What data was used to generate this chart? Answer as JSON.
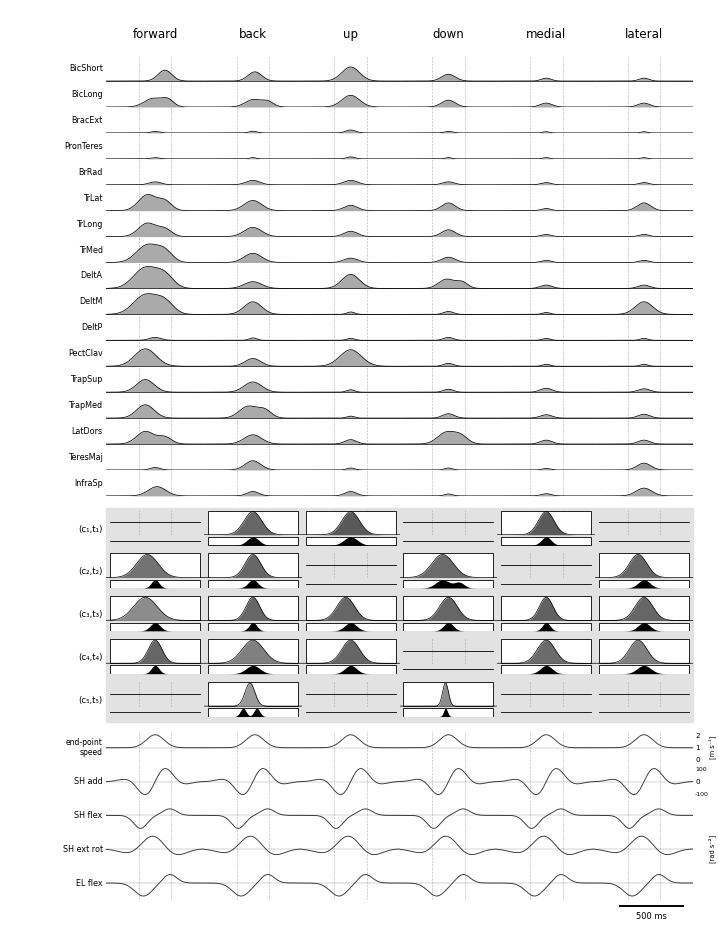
{
  "columns": [
    "forward",
    "back",
    "up",
    "down",
    "medial",
    "lateral"
  ],
  "muscle_rows": [
    "BicShort",
    "BicLong",
    "BracExt",
    "PronTeres",
    "BrRad",
    "TrLat",
    "TrLong",
    "TrMed",
    "DeltA",
    "DeltM",
    "DeltP",
    "PectClav",
    "TrapSup",
    "TrapMed",
    "LatDors",
    "TeresMaj",
    "InfraSp"
  ],
  "synergy_rows": [
    "(c₁,t₁)",
    "(c₂,t₂)",
    "(c₃,t₃)",
    "(c₄,t₄)",
    "(c₅,t₅)"
  ],
  "kinematic_rows": [
    "end-point\nspeed",
    "SH add",
    "SH flex",
    "SH ext rot",
    "EL flex"
  ],
  "gray_fill": "#aaaaaa",
  "dark_fill": "#555555",
  "darker_fill": "#333333",
  "black_fill": "#111111",
  "synergy_bg": "#e0e0e0"
}
